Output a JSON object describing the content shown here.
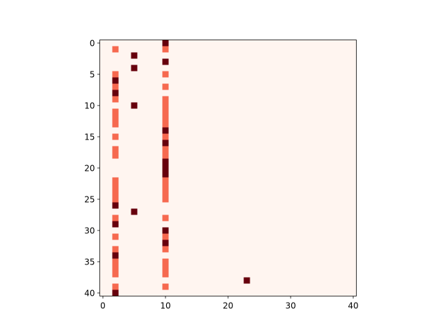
{
  "chart_data": {
    "type": "heatmap",
    "x": [
      2,
      2,
      2,
      2,
      2,
      2,
      2,
      2,
      2,
      2,
      2,
      2,
      2,
      2,
      2,
      2,
      2,
      2,
      2,
      2,
      2,
      2,
      2,
      2,
      2,
      2,
      2,
      5,
      5,
      5,
      5,
      10,
      10,
      10,
      10,
      10,
      10,
      10,
      10,
      10,
      10,
      10,
      10,
      10,
      10,
      10,
      10,
      10,
      10,
      10,
      10,
      10,
      10,
      10,
      10,
      10,
      10,
      10,
      10,
      10,
      10,
      10,
      23
    ],
    "y": [
      1,
      5,
      6,
      7,
      8,
      9,
      11,
      12,
      13,
      15,
      17,
      18,
      22,
      23,
      24,
      25,
      26,
      28,
      29,
      31,
      33,
      34,
      35,
      36,
      37,
      39,
      40,
      2,
      4,
      10,
      27,
      0,
      1,
      3,
      5,
      7,
      9,
      10,
      11,
      12,
      13,
      14,
      15,
      16,
      17,
      18,
      19,
      20,
      21,
      22,
      23,
      24,
      25,
      28,
      30,
      31,
      32,
      33,
      35,
      36,
      37,
      39,
      38
    ],
    "values": [
      1,
      1,
      2,
      1,
      2,
      1,
      1,
      1,
      1,
      1,
      1,
      1,
      1,
      1,
      1,
      1,
      2,
      1,
      2,
      1,
      1,
      2,
      1,
      1,
      1,
      1,
      2,
      2,
      2,
      2,
      2,
      2,
      1,
      2,
      1,
      1,
      1,
      1,
      1,
      1,
      1,
      2,
      1,
      2,
      1,
      1,
      2,
      2,
      2,
      1,
      1,
      1,
      1,
      1,
      2,
      1,
      2,
      1,
      1,
      1,
      1,
      1,
      2
    ],
    "cmap": [
      "#fff5f0",
      "#f6694f",
      "#67000d"
    ],
    "xlim": [
      -0.5,
      40.5
    ],
    "ylim": [
      40.5,
      -0.5
    ],
    "xticks": [
      0,
      10,
      20,
      30,
      40
    ],
    "yticks": [
      0,
      5,
      10,
      15,
      20,
      25,
      30,
      35,
      40
    ]
  }
}
